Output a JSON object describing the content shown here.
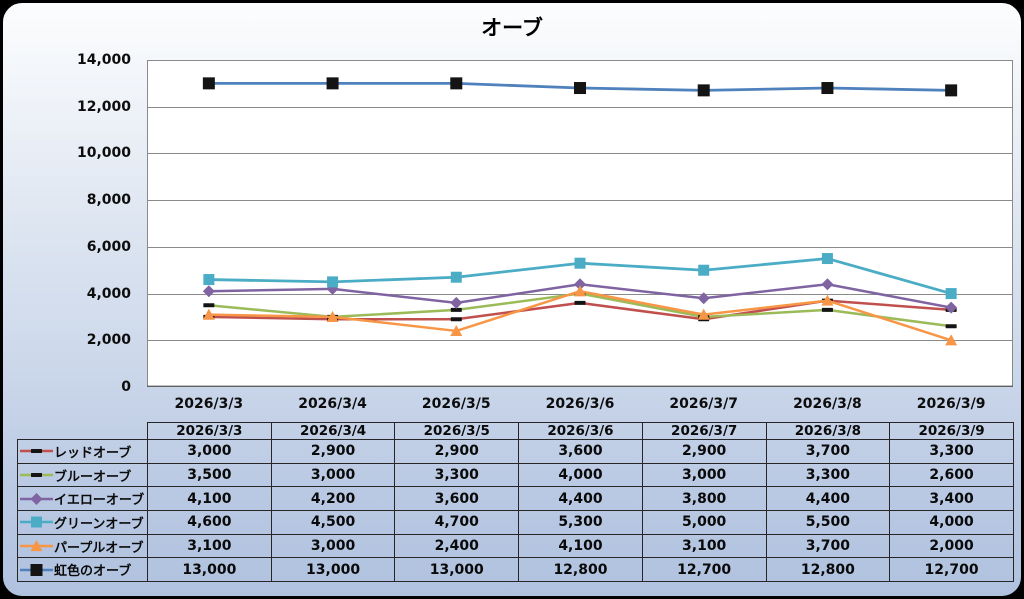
{
  "chart_data": {
    "type": "line",
    "title": "オーブ",
    "categories": [
      "2026/3/3",
      "2026/3/4",
      "2026/3/5",
      "2026/3/6",
      "2026/3/7",
      "2026/3/8",
      "2026/3/9"
    ],
    "series": [
      {
        "name": "レッドオーブ",
        "color": "#C0504D",
        "marker": "dash",
        "marker_color": "#141414",
        "marker_size": 11,
        "line_width": 2.5,
        "values": [
          3000,
          2900,
          2900,
          3600,
          2900,
          3700,
          3300
        ]
      },
      {
        "name": "ブルーオーブ",
        "color": "#9BBB59",
        "marker": "dash",
        "marker_color": "#141414",
        "marker_size": 11,
        "line_width": 2.5,
        "values": [
          3500,
          3000,
          3300,
          4000,
          3000,
          3300,
          2600
        ]
      },
      {
        "name": "イエローオーブ",
        "color": "#8064A2",
        "marker": "diamond",
        "marker_color": "#8064A2",
        "marker_size": 11,
        "line_width": 2.5,
        "values": [
          4100,
          4200,
          3600,
          4400,
          3800,
          4400,
          3400
        ]
      },
      {
        "name": "グリーンオーブ",
        "color": "#4BACC6",
        "marker": "square",
        "marker_color": "#4BACC6",
        "marker_size": 11,
        "line_width": 2.8,
        "values": [
          4600,
          4500,
          4700,
          5300,
          5000,
          5500,
          4000
        ]
      },
      {
        "name": "パープルオーブ",
        "color": "#F79646",
        "marker": "triangle",
        "marker_color": "#F79646",
        "marker_size": 12,
        "line_width": 2.5,
        "values": [
          3100,
          3000,
          2400,
          4100,
          3100,
          3700,
          2000
        ]
      },
      {
        "name": "虹色のオーブ",
        "color": "#4F81BD",
        "marker": "square",
        "marker_color": "#141414",
        "marker_size": 12,
        "line_width": 2.8,
        "values": [
          13000,
          13000,
          13000,
          12800,
          12700,
          12800,
          12700
        ]
      }
    ],
    "ylim": [
      0,
      14000
    ],
    "ytick_step": 2000,
    "ytick_labels": [
      "0",
      "2,000",
      "4,000",
      "6,000",
      "8,000",
      "10,000",
      "12,000",
      "14,000"
    ],
    "grid": true,
    "gridline_color": "#8a8a8a",
    "axis_line_color": "#5e5e5e",
    "plot_bg": "#ffffff",
    "legend_position": "table-left"
  }
}
